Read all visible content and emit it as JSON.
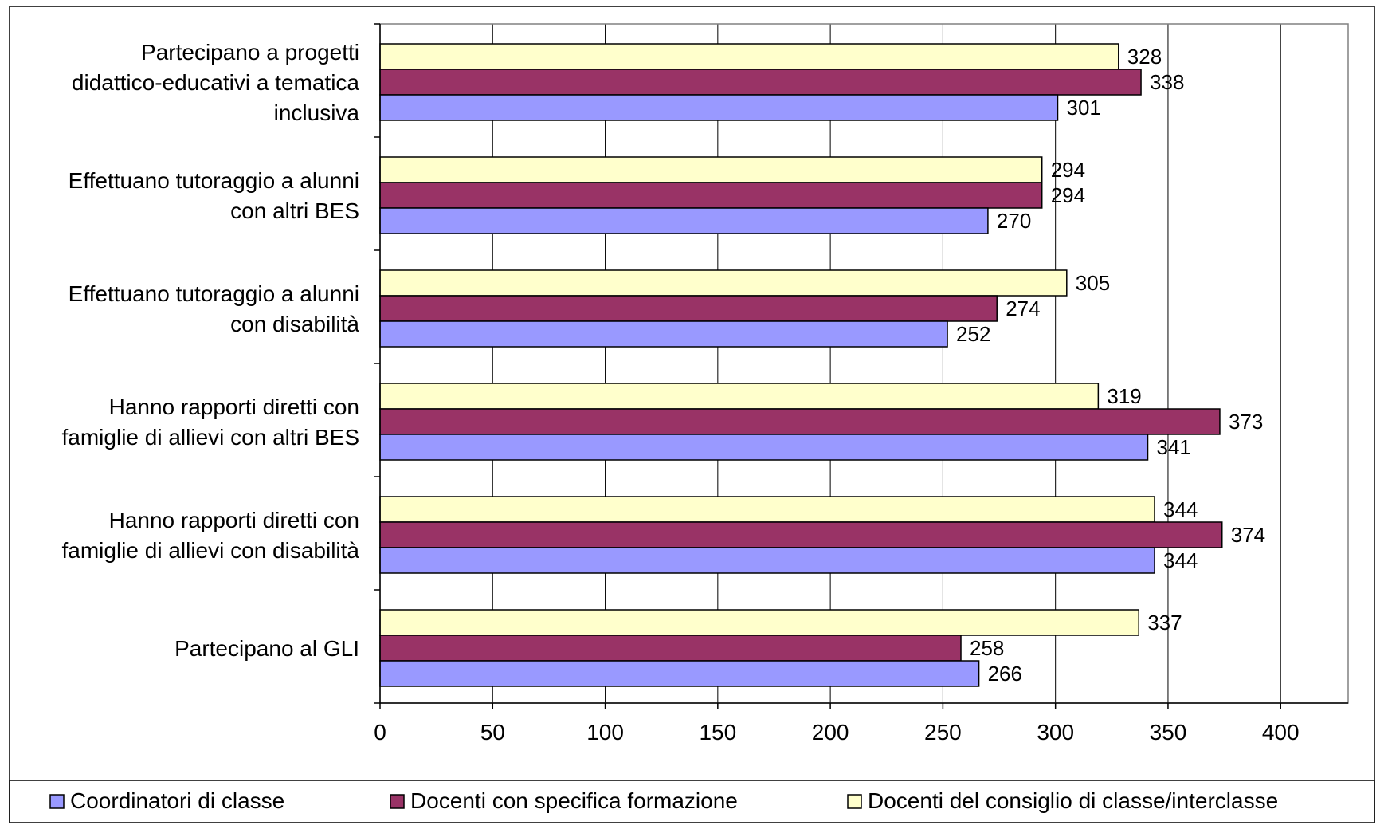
{
  "chart_data": {
    "type": "bar",
    "orientation": "horizontal",
    "categories": [
      [
        "Partecipano a progetti",
        "didattico-educativi a tematica",
        "inclusiva"
      ],
      [
        "Effettuano tutoraggio a alunni",
        "con altri BES"
      ],
      [
        "Effettuano tutoraggio a alunni",
        "con disabilità"
      ],
      [
        "Hanno rapporti diretti con",
        "famiglie di allievi con altri BES"
      ],
      [
        "Hanno rapporti diretti con",
        "famiglie di allievi con disabilità"
      ],
      [
        "Partecipano al GLI"
      ]
    ],
    "series": [
      {
        "name": "Docenti del consiglio di classe/interclasse",
        "color": "#FFFFCC",
        "values": [
          328,
          294,
          305,
          319,
          344,
          337
        ]
      },
      {
        "name": "Docenti con specifica formazione",
        "color": "#993366",
        "values": [
          338,
          294,
          274,
          373,
          374,
          258
        ]
      },
      {
        "name": "Coordinatori di classe",
        "color": "#9999FF",
        "values": [
          301,
          270,
          252,
          341,
          344,
          266
        ]
      }
    ],
    "legend_order": [
      2,
      1,
      0
    ],
    "xlim": [
      0,
      430
    ],
    "xticks": [
      0,
      50,
      100,
      150,
      200,
      250,
      300,
      350,
      400
    ],
    "grid": "vertical",
    "legend": "bottom"
  }
}
